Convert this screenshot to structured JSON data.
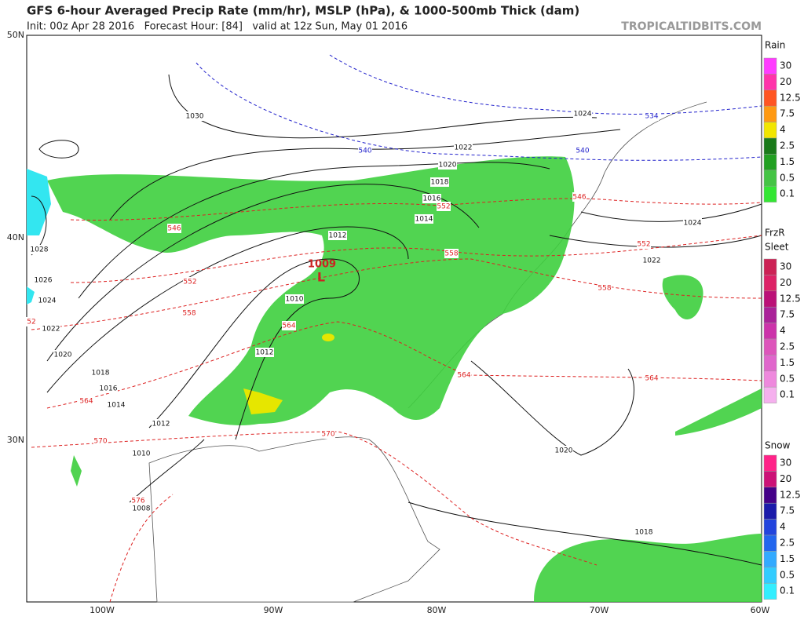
{
  "header": {
    "title": "GFS 6-hour Averaged Precip Rate (mm/hr), MSLP (hPa), & 1000-500mb Thick (dam)",
    "subtitle": "Init: 00z Apr 28 2016   Forecast Hour: [84]   valid at 12z Sun, May 01 2016",
    "site": "TROPICALTIDBITS.COM"
  },
  "axes": {
    "lat": [
      "50N",
      "40N",
      "30N"
    ],
    "lon": [
      "100W",
      "90W",
      "80W",
      "70W",
      "60W"
    ]
  },
  "legend": {
    "rain": {
      "title": "Rain",
      "levels": [
        "30",
        "20",
        "12.5",
        "7.5",
        "4",
        "2.5",
        "1.5",
        "0.5",
        "0.1"
      ]
    },
    "frzr": {
      "title": "FrzR"
    },
    "sleet": {
      "title": "Sleet",
      "levels": [
        "30",
        "20",
        "12.5",
        "7.5",
        "4",
        "2.5",
        "1.5",
        "0.5",
        "0.1"
      ]
    },
    "snow": {
      "title": "Snow",
      "levels": [
        "30",
        "20",
        "12.5",
        "7.5",
        "4",
        "2.5",
        "1.5",
        "0.5",
        "0.1"
      ]
    }
  },
  "low": {
    "pressure": "1009",
    "label": "L"
  },
  "isobars": [
    "1030",
    "1024",
    "1022",
    "1020",
    "1018",
    "1016",
    "1014",
    "1012",
    "1010",
    "1028",
    "1026",
    "1024",
    "1022",
    "1020",
    "1018",
    "1016",
    "1014",
    "1012",
    "1012",
    "1010",
    "1008",
    "1024",
    "1022",
    "1020",
    "1018"
  ],
  "thickness": [
    "534",
    "540",
    "540",
    "546",
    "552",
    "552",
    "558",
    "558",
    "564",
    "564",
    "564",
    "570",
    "570",
    "576",
    "546",
    "552",
    "558",
    "564",
    "52"
  ]
}
